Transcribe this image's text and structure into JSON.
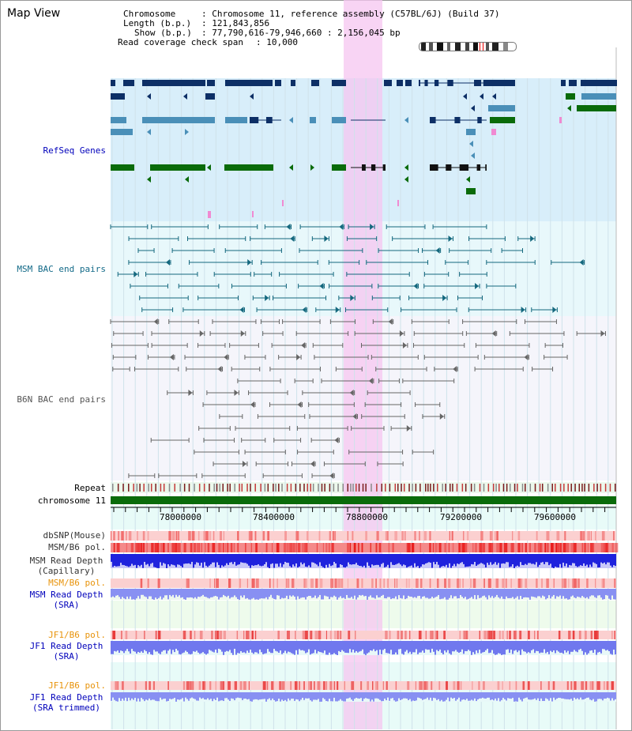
{
  "view_title": "Map View",
  "info": {
    "chromosome_key": "Chromosome",
    "chromosome_value": ": Chromosome 11, reference assembly (C57BL/6J) (Build 37)",
    "length_key": "Length (b.p.)",
    "length_value": ": 121,843,856",
    "show_key": "Show (b.p.)",
    "show_value": ": 77,790,616-79,946,660 : 2,156,045 bp",
    "coverage_key": "Read coverage check span",
    "coverage_value": ": 10,000"
  },
  "tracks": {
    "refseq": "RefSeq Genes",
    "msm_bac": "MSM BAC end pairs",
    "b6n_bac": "B6N BAC end pairs",
    "repeat": "Repeat",
    "chromosome": "chromosome 11",
    "dbsnp": "dbSNP(Mouse)",
    "msm_b6_pol_1": "MSM/B6 pol.",
    "msm_read_depth_cap_1": "MSM Read Depth",
    "msm_read_depth_cap_2": "(Capillary)",
    "msm_b6_pol_2": "MSM/B6 pol.",
    "msm_read_depth_sra_1": "MSM Read Depth",
    "msm_read_depth_sra_2": "(SRA)",
    "jf1_b6_pol_1": "JF1/B6 pol.",
    "jf1_read_depth_sra_1": "JF1 Read Depth",
    "jf1_read_depth_sra_2": "(SRA)",
    "jf1_b6_pol_2": "JF1/B6 pol.",
    "jf1_read_depth_trim_1": "JF1 Read Depth",
    "jf1_read_depth_trim_2": "(SRA trimmed)"
  },
  "axis_ticks": [
    "78000000",
    "78400000",
    "78800000",
    "79200000",
    "79600000"
  ],
  "colors": {
    "navy": "#0d2f66",
    "steel": "#4a8fb8",
    "green": "#0a6b0a",
    "teal": "#14687e",
    "grey_line": "#666666",
    "highlight": "#f5c6f0",
    "refseq_label": "#0000bb",
    "msm_label": "#136a88",
    "b6n_label": "#555555",
    "pol_label": "#e8930a",
    "depth_label": "#0000bb"
  }
}
